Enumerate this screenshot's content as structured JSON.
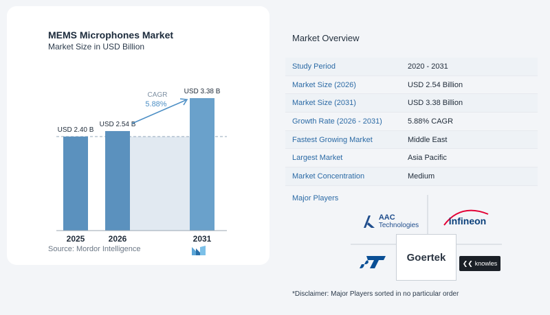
{
  "chart": {
    "title": "MEMS Microphones Market",
    "subtitle": "Market Size in USD Billion",
    "source": "Source:  Mordor Intelligence",
    "cagr_label": "CAGR",
    "cagr_value": "5.88%"
  },
  "chart_data": {
    "type": "bar",
    "title": "MEMS Microphones Market",
    "subtitle": "Market Size in USD Billion",
    "categories": [
      "2025",
      "2026",
      "2031"
    ],
    "values": [
      2.4,
      2.54,
      3.38
    ],
    "data_labels": [
      "USD 2.40 B",
      "USD 2.54 B",
      "USD 3.38 B"
    ],
    "ylim": [
      0,
      3.38
    ],
    "annotation": "CAGR 5.88%",
    "colors": {
      "bar": "#5b91be",
      "bar_highlight": "#6aa1cb",
      "shade": "#e1e9f1",
      "arrow": "#4d8fc5"
    }
  },
  "overview": {
    "title": "Market Overview",
    "rows": [
      {
        "label": "Study Period",
        "value": "2020 - 2031"
      },
      {
        "label": "Market Size (2026)",
        "value": "USD 2.54 Billion"
      },
      {
        "label": "Market Size (2031)",
        "value": "USD 3.38 Billion"
      },
      {
        "label": "Growth Rate (2026 - 2031)",
        "value": "5.88% CAGR"
      },
      {
        "label": "Fastest Growing Market",
        "value": "Middle East"
      },
      {
        "label": "Largest Market",
        "value": "Asia Pacific"
      },
      {
        "label": "Market Concentration",
        "value": "Medium"
      }
    ]
  },
  "players": {
    "title": "Major Players",
    "aac_line1": "AAC",
    "aac_line2": "Technologies",
    "infineon": "infineon",
    "st": "ST",
    "goertek": "Goertek",
    "knowles": "knowles"
  },
  "disclaimer": "*Disclaimer: Major Players sorted in no particular order"
}
